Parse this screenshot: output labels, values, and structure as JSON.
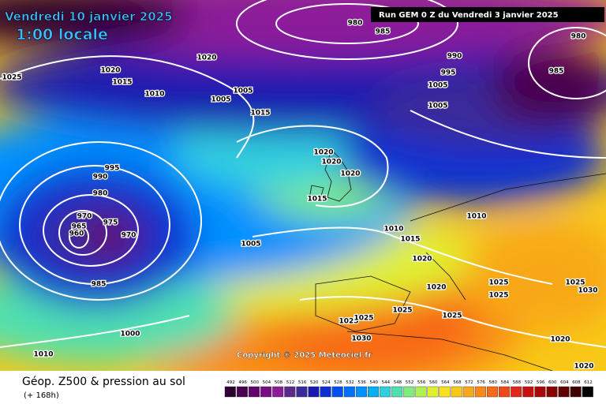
{
  "header": {
    "title": "Vendredi 10 janvier 2025",
    "subtitle": "1:00 locale",
    "run": "Run GEM 0 Z du Vendredi 3 janvier 2025"
  },
  "isobar_labels": [
    980,
    985,
    980,
    990,
    995,
    985,
    1020,
    1025,
    1020,
    1015,
    1010,
    1005,
    1005,
    1015,
    1005,
    1005,
    995,
    990,
    980,
    970,
    965,
    960,
    975,
    970,
    985,
    1020,
    1020,
    1020,
    1015,
    1010,
    1015,
    1020,
    1010,
    1005,
    1020,
    1025,
    1025,
    1025,
    1030,
    1000,
    1010,
    1025,
    1025,
    1025,
    1025,
    1030,
    1020,
    1020
  ],
  "copyright": "Copyright © 2025 Meteociel.fr",
  "footer": {
    "title": "Géop. Z500 & pression au sol",
    "lead": "(+ 168h)"
  },
  "legend": {
    "values": [
      492,
      496,
      500,
      504,
      508,
      512,
      516,
      520,
      524,
      528,
      532,
      536,
      540,
      544,
      548,
      552,
      556,
      560,
      564,
      568,
      572,
      576,
      580,
      584,
      588,
      592,
      596,
      600,
      604,
      608,
      612
    ],
    "colors": [
      "#2e0030",
      "#4a0050",
      "#65006e",
      "#7a0a85",
      "#8c1c9a",
      "#5a2a8a",
      "#3a2a9a",
      "#1a1ab0",
      "#0a30d0",
      "#0050f0",
      "#0070ff",
      "#0090ff",
      "#00b0f0",
      "#30d0e0",
      "#50e0b0",
      "#80ec80",
      "#b0f050",
      "#e0f030",
      "#f8e020",
      "#f8c818",
      "#f8a818",
      "#f88818",
      "#f86818",
      "#f04818",
      "#e02818",
      "#c81010",
      "#a80808",
      "#880000",
      "#600000",
      "#400000",
      "#000000"
    ]
  }
}
